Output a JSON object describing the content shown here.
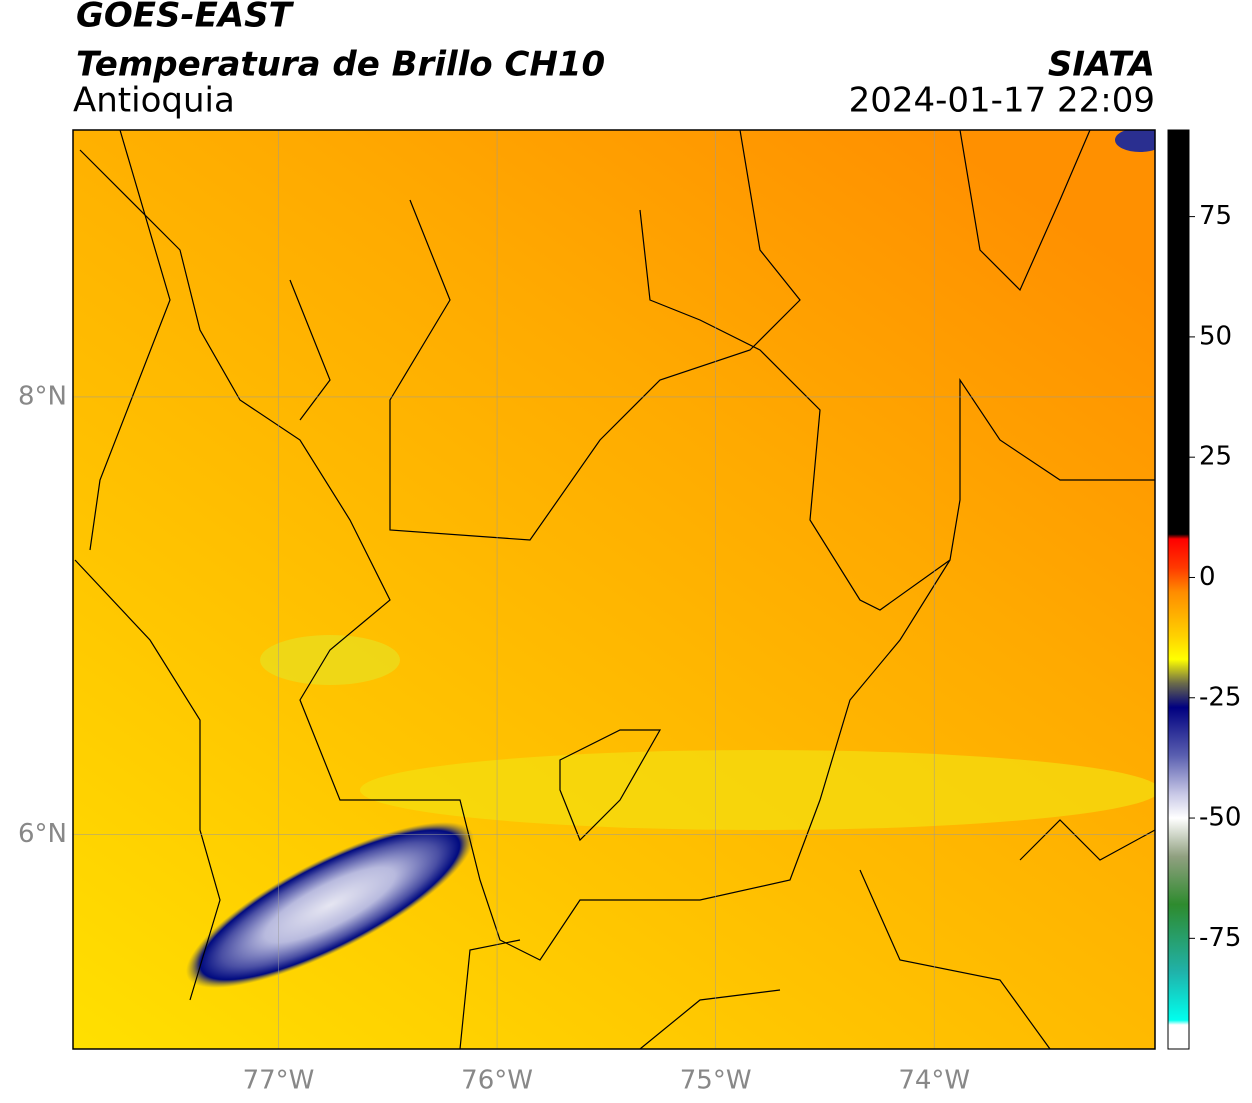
{
  "header": {
    "title": "GOES-EAST",
    "subtitle": "Temperatura de Brillo CH10",
    "region": "Antioquia",
    "source": "SIATA",
    "datetime": "2024-01-17 22:09"
  },
  "map": {
    "xlim": [
      -77.94,
      -72.99
    ],
    "ylim": [
      5.02,
      9.22
    ],
    "xticks": [
      {
        "value": -77,
        "label": "77°W"
      },
      {
        "value": -76,
        "label": "76°W"
      },
      {
        "value": -75,
        "label": "75°W"
      },
      {
        "value": -74,
        "label": "74°W"
      }
    ],
    "yticks": [
      {
        "value": 6,
        "label": "6°N"
      },
      {
        "value": 8,
        "label": "8°N"
      }
    ],
    "grid": true
  },
  "colorbar": {
    "lim": [
      -98,
      93
    ],
    "ticks": [
      75,
      50,
      25,
      0,
      -25,
      -50,
      -75
    ],
    "stops": [
      {
        "value": 93,
        "color": "#000000"
      },
      {
        "value": 9,
        "color": "#000000"
      },
      {
        "value": 8,
        "color": "#ff0000"
      },
      {
        "value": 2,
        "color": "#ff3a00"
      },
      {
        "value": -3,
        "color": "#ff8c00"
      },
      {
        "value": -12,
        "color": "#ffd000"
      },
      {
        "value": -17,
        "color": "#ffff00"
      },
      {
        "value": -22,
        "color": "#6b6b4a"
      },
      {
        "value": -27,
        "color": "#000080"
      },
      {
        "value": -37,
        "color": "#5a5fb0"
      },
      {
        "value": -45,
        "color": "#c8c8e6"
      },
      {
        "value": -50,
        "color": "#ffffff"
      },
      {
        "value": -58,
        "color": "#90a080"
      },
      {
        "value": -68,
        "color": "#2e8b2e"
      },
      {
        "value": -82,
        "color": "#20b2aa"
      },
      {
        "value": -92,
        "color": "#00ffee"
      },
      {
        "value": -93,
        "color": "#ffffff"
      },
      {
        "value": -98,
        "color": "#ffffff"
      }
    ]
  }
}
